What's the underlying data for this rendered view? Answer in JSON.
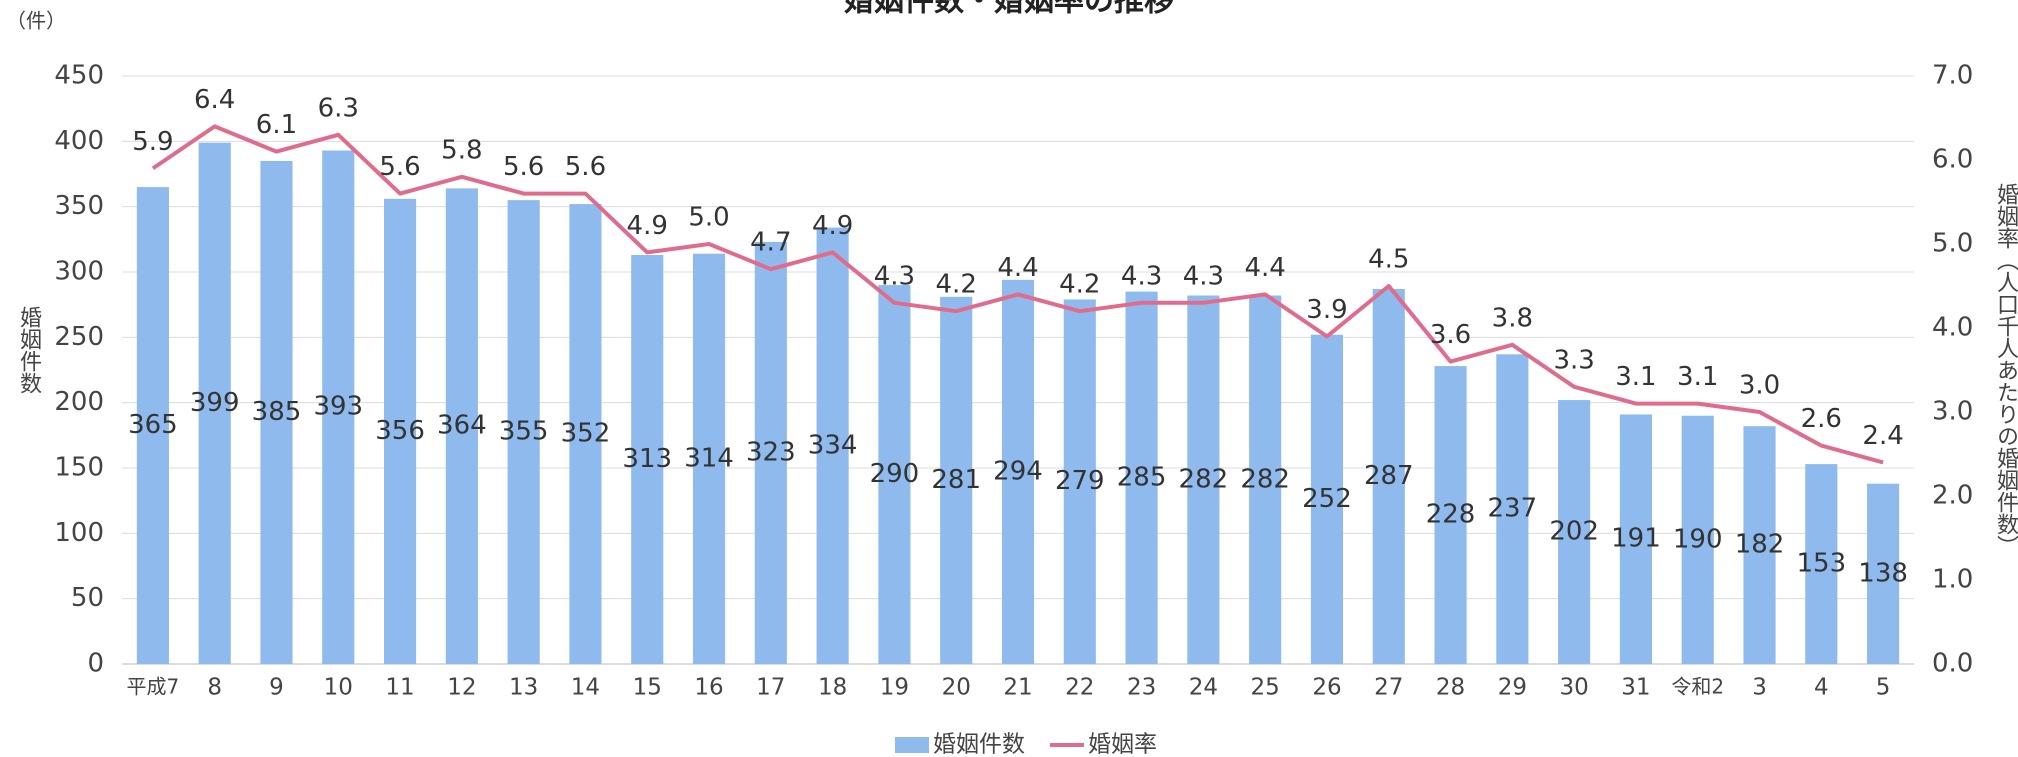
{
  "chart_data": {
    "type": "bar_line",
    "title": "婚姻件数・婚姻率の推移",
    "y_unit": "（件）",
    "y_label": "婚姻件数",
    "y2_label": "婚姻率（人口千人あたりの婚姻件数）",
    "categories": [
      "平成7",
      "8",
      "9",
      "10",
      "11",
      "12",
      "13",
      "14",
      "15",
      "16",
      "17",
      "18",
      "19",
      "20",
      "21",
      "22",
      "23",
      "24",
      "25",
      "26",
      "27",
      "28",
      "29",
      "30",
      "31",
      "令和2",
      "3",
      "4",
      "5"
    ],
    "series": [
      {
        "name": "婚姻件数",
        "type": "bar",
        "color": "#8fbaed",
        "values": [
          365,
          399,
          385,
          393,
          356,
          364,
          355,
          352,
          313,
          314,
          323,
          334,
          290,
          281,
          294,
          279,
          285,
          282,
          282,
          252,
          287,
          228,
          237,
          202,
          191,
          190,
          182,
          153,
          138
        ]
      },
      {
        "name": "婚姻率",
        "type": "line",
        "axis": "y2",
        "color": "#e06c8c",
        "values": [
          5.9,
          6.4,
          6.1,
          6.3,
          5.6,
          5.8,
          5.6,
          5.6,
          4.9,
          5.0,
          4.7,
          4.9,
          4.3,
          4.2,
          4.4,
          4.2,
          4.3,
          4.3,
          4.4,
          3.9,
          4.5,
          3.6,
          3.8,
          3.3,
          3.1,
          3.1,
          3.0,
          2.6,
          2.4
        ],
        "value_labels": [
          "5.9",
          "6.4",
          "6.1",
          "6.3",
          "5.6",
          "5.8",
          "5.6",
          "5.6",
          "4.9",
          "5.0",
          "4.7",
          "4.9",
          "4.3",
          "4.2",
          "4.4",
          "4.2",
          "4.3",
          "4.3",
          "4.4",
          "3.9",
          "4.5",
          "3.6",
          "3.8",
          "3.3",
          "3.1",
          "3.1",
          "3.0",
          "2.6",
          "2.4"
        ]
      }
    ],
    "ylim": [
      0,
      450
    ],
    "yticks": [
      0,
      50,
      100,
      150,
      200,
      250,
      300,
      350,
      400,
      450
    ],
    "y2lim": [
      0,
      7
    ],
    "y2ticks": [
      {
        "value": 0,
        "label": "0.0"
      },
      {
        "value": 1,
        "label": "1.0"
      },
      {
        "value": 2,
        "label": "2.0"
      },
      {
        "value": 3,
        "label": "3.0"
      },
      {
        "value": 4,
        "label": "4.0"
      },
      {
        "value": 5,
        "label": "5.0"
      },
      {
        "value": 6,
        "label": "6.0"
      },
      {
        "value": 7,
        "label": "7.0"
      }
    ],
    "grid": true,
    "legend": "bottom"
  }
}
